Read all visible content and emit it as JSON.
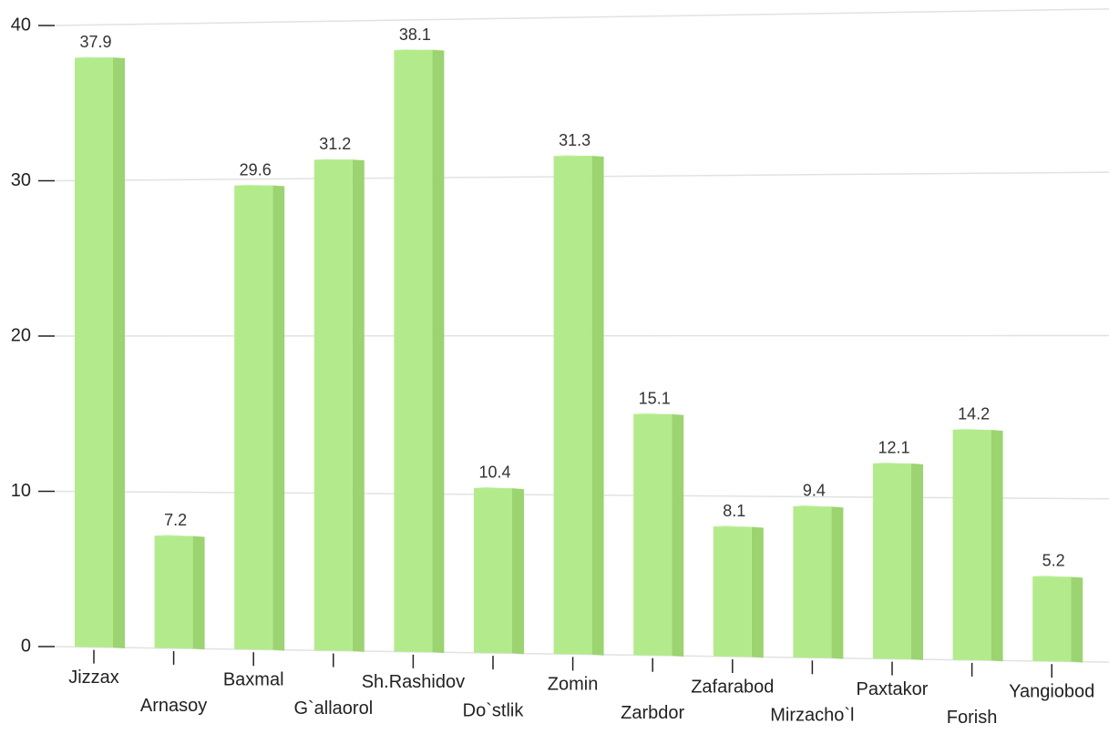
{
  "chart_data": {
    "type": "bar",
    "categories": [
      "Jizzax",
      "Arnasoy",
      "Baxmal",
      "G`allaorol",
      "Sh.Rashidov",
      "Do`stlik",
      "Zomin",
      "Zarbdor",
      "Zafarabod",
      "Mirzacho`l",
      "Paxtakor",
      "Forish",
      "Yangiobod"
    ],
    "values": [
      37.9,
      7.2,
      29.6,
      31.2,
      38.1,
      10.4,
      31.3,
      15.1,
      8.1,
      9.4,
      12.1,
      14.2,
      5.2
    ],
    "color": "#b3eb8c",
    "ylim": [
      0,
      40
    ],
    "yticks": [
      0,
      10,
      20,
      30,
      40
    ],
    "grid": true
  }
}
